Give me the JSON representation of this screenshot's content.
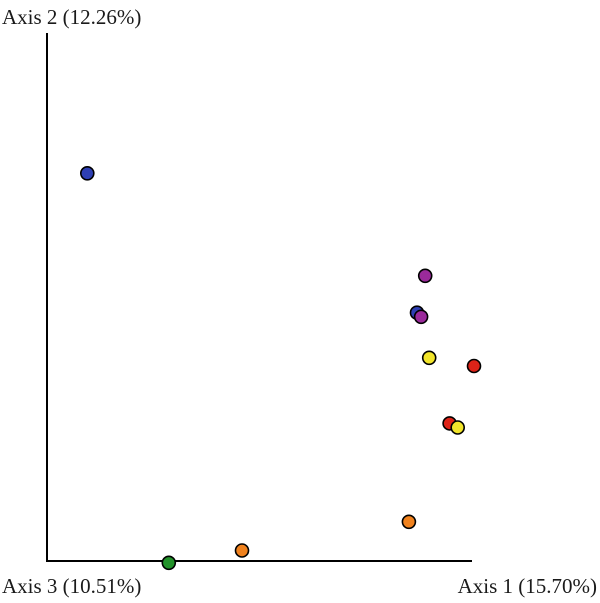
{
  "chart_data": {
    "type": "scatter",
    "title": "",
    "axis_labels": {
      "axis_2": "Axis 2 (12.26%)",
      "axis_3": "Axis 3 (10.51%)",
      "axis_1": "Axis 1 (15.70%)"
    },
    "grid": false,
    "legend": "none",
    "points": [
      {
        "x": 0.05,
        "y": 0.97,
        "color": "#2e3fb3"
      },
      {
        "x": 0.88,
        "y": 0.72,
        "color": "#9a2a9a"
      },
      {
        "x": 0.86,
        "y": 0.63,
        "color": "#2e3fb3"
      },
      {
        "x": 0.87,
        "y": 0.62,
        "color": "#9a2a9a"
      },
      {
        "x": 0.89,
        "y": 0.52,
        "color": "#f2e52b"
      },
      {
        "x": 1.0,
        "y": 0.5,
        "color": "#dd2318"
      },
      {
        "x": 0.94,
        "y": 0.36,
        "color": "#dd2318"
      },
      {
        "x": 0.96,
        "y": 0.35,
        "color": "#f2e52b"
      },
      {
        "x": 0.84,
        "y": 0.12,
        "color": "#f0821e"
      },
      {
        "x": 0.43,
        "y": 0.05,
        "color": "#f0821e"
      },
      {
        "x": 0.25,
        "y": 0.02,
        "color": "#22922a"
      }
    ]
  }
}
